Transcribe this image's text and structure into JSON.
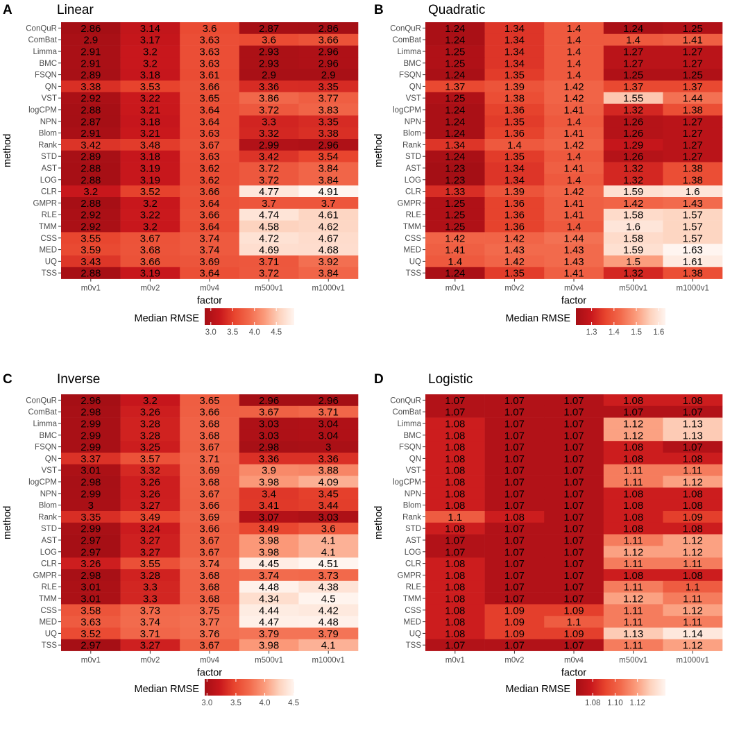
{
  "chart_data": [
    {
      "type": "heatmap",
      "panel_label": "A",
      "title": "Linear",
      "xlabel": "factor",
      "ylabel": "method",
      "categories": [
        "m0v1",
        "m0v2",
        "m0v4",
        "m500v1",
        "m1000v1"
      ],
      "methods": [
        "ConQuR",
        "ComBat",
        "Limma",
        "BMC",
        "FSQN",
        "QN",
        "VST",
        "logCPM",
        "NPN",
        "Blom",
        "Rank",
        "STD",
        "AST",
        "LOG",
        "CLR",
        "GMPR",
        "RLE",
        "TMM",
        "CSS",
        "MED",
        "UQ",
        "TSS"
      ],
      "values": [
        [
          2.86,
          3.14,
          3.6,
          2.87,
          2.86
        ],
        [
          2.9,
          3.17,
          3.63,
          3.6,
          3.66
        ],
        [
          2.91,
          3.2,
          3.63,
          2.93,
          2.96
        ],
        [
          2.91,
          3.2,
          3.63,
          2.93,
          2.96
        ],
        [
          2.89,
          3.18,
          3.61,
          2.9,
          2.9
        ],
        [
          3.38,
          3.53,
          3.66,
          3.36,
          3.35
        ],
        [
          2.92,
          3.22,
          3.65,
          3.86,
          3.77
        ],
        [
          2.88,
          3.21,
          3.64,
          3.72,
          3.83
        ],
        [
          2.87,
          3.18,
          3.64,
          3.3,
          3.35
        ],
        [
          2.91,
          3.21,
          3.63,
          3.32,
          3.38
        ],
        [
          3.42,
          3.48,
          3.67,
          2.99,
          2.96
        ],
        [
          2.89,
          3.18,
          3.63,
          3.42,
          3.54
        ],
        [
          2.88,
          3.19,
          3.62,
          3.72,
          3.84
        ],
        [
          2.88,
          3.19,
          3.62,
          3.72,
          3.84
        ],
        [
          3.2,
          3.52,
          3.66,
          4.77,
          4.91
        ],
        [
          2.88,
          3.2,
          3.64,
          3.7,
          3.7
        ],
        [
          2.92,
          3.22,
          3.66,
          4.74,
          4.61
        ],
        [
          2.92,
          3.2,
          3.64,
          4.58,
          4.62
        ],
        [
          3.55,
          3.67,
          3.74,
          4.72,
          4.67
        ],
        [
          3.59,
          3.68,
          3.74,
          4.69,
          4.68
        ],
        [
          3.43,
          3.66,
          3.69,
          3.71,
          3.92
        ],
        [
          2.88,
          3.19,
          3.64,
          3.72,
          3.84
        ]
      ],
      "legend_title": "Median RMSE",
      "legend_ticks": [
        "3.0",
        "3.5",
        "4.0",
        "4.5"
      ],
      "legend_tick_values": [
        3.0,
        3.5,
        4.0,
        4.5
      ],
      "color_range": [
        2.86,
        4.91
      ]
    },
    {
      "type": "heatmap",
      "panel_label": "B",
      "title": "Quadratic",
      "xlabel": "factor",
      "ylabel": "method",
      "categories": [
        "m0v1",
        "m0v2",
        "m0v4",
        "m500v1",
        "m1000v1"
      ],
      "methods": [
        "ConQuR",
        "ComBat",
        "Limma",
        "BMC",
        "FSQN",
        "QN",
        "VST",
        "logCPM",
        "NPN",
        "Blom",
        "Rank",
        "STD",
        "AST",
        "LOG",
        "CLR",
        "GMPR",
        "RLE",
        "TMM",
        "CSS",
        "MED",
        "UQ",
        "TSS"
      ],
      "values": [
        [
          1.24,
          1.34,
          1.4,
          1.24,
          1.25
        ],
        [
          1.24,
          1.34,
          1.4,
          1.4,
          1.41
        ],
        [
          1.25,
          1.34,
          1.4,
          1.27,
          1.27
        ],
        [
          1.25,
          1.34,
          1.4,
          1.27,
          1.27
        ],
        [
          1.24,
          1.35,
          1.4,
          1.25,
          1.25
        ],
        [
          1.37,
          1.39,
          1.42,
          1.37,
          1.37
        ],
        [
          1.25,
          1.38,
          1.42,
          1.55,
          1.44
        ],
        [
          1.24,
          1.36,
          1.41,
          1.32,
          1.38
        ],
        [
          1.24,
          1.35,
          1.4,
          1.26,
          1.27
        ],
        [
          1.24,
          1.36,
          1.41,
          1.26,
          1.27
        ],
        [
          1.34,
          1.4,
          1.42,
          1.29,
          1.27
        ],
        [
          1.24,
          1.35,
          1.4,
          1.26,
          1.27
        ],
        [
          1.23,
          1.34,
          1.41,
          1.32,
          1.38
        ],
        [
          1.23,
          1.34,
          1.4,
          1.32,
          1.38
        ],
        [
          1.33,
          1.39,
          1.42,
          1.59,
          1.6
        ],
        [
          1.25,
          1.36,
          1.41,
          1.42,
          1.43
        ],
        [
          1.25,
          1.36,
          1.41,
          1.58,
          1.57
        ],
        [
          1.25,
          1.36,
          1.4,
          1.6,
          1.57
        ],
        [
          1.42,
          1.42,
          1.44,
          1.58,
          1.57
        ],
        [
          1.41,
          1.43,
          1.43,
          1.59,
          1.63
        ],
        [
          1.4,
          1.42,
          1.43,
          1.5,
          1.61
        ],
        [
          1.24,
          1.35,
          1.41,
          1.32,
          1.38
        ]
      ],
      "legend_title": "Median RMSE",
      "legend_ticks": [
        "1.3",
        "1.4",
        "1.5",
        "1.6"
      ],
      "legend_tick_values": [
        1.3,
        1.4,
        1.5,
        1.6
      ],
      "color_range": [
        1.23,
        1.63
      ]
    },
    {
      "type": "heatmap",
      "panel_label": "C",
      "title": "Inverse",
      "xlabel": "factor",
      "ylabel": "method",
      "categories": [
        "m0v1",
        "m0v2",
        "m0v4",
        "m500v1",
        "m1000v1"
      ],
      "methods": [
        "ConQuR",
        "ComBat",
        "Limma",
        "BMC",
        "FSQN",
        "QN",
        "VST",
        "logCPM",
        "NPN",
        "Blom",
        "Rank",
        "STD",
        "AST",
        "LOG",
        "CLR",
        "GMPR",
        "RLE",
        "TMM",
        "CSS",
        "MED",
        "UQ",
        "TSS"
      ],
      "values": [
        [
          2.96,
          3.2,
          3.65,
          2.96,
          2.96
        ],
        [
          2.98,
          3.26,
          3.66,
          3.67,
          3.71
        ],
        [
          2.99,
          3.28,
          3.68,
          3.03,
          3.04
        ],
        [
          2.99,
          3.28,
          3.68,
          3.03,
          3.04
        ],
        [
          2.99,
          3.25,
          3.67,
          2.98,
          3
        ],
        [
          3.37,
          3.57,
          3.71,
          3.36,
          3.36
        ],
        [
          3.01,
          3.32,
          3.69,
          3.9,
          3.88
        ],
        [
          2.98,
          3.26,
          3.68,
          3.98,
          4.09
        ],
        [
          2.99,
          3.26,
          3.67,
          3.4,
          3.45
        ],
        [
          3,
          3.27,
          3.66,
          3.41,
          3.44
        ],
        [
          3.35,
          3.49,
          3.69,
          3.07,
          3.03
        ],
        [
          2.99,
          3.24,
          3.66,
          3.49,
          3.6
        ],
        [
          2.97,
          3.27,
          3.67,
          3.98,
          4.1
        ],
        [
          2.97,
          3.27,
          3.67,
          3.98,
          4.1
        ],
        [
          3.26,
          3.55,
          3.74,
          4.45,
          4.51
        ],
        [
          2.98,
          3.28,
          3.68,
          3.74,
          3.73
        ],
        [
          3.01,
          3.3,
          3.68,
          4.48,
          4.38
        ],
        [
          3.01,
          3.3,
          3.68,
          4.34,
          4.5
        ],
        [
          3.58,
          3.73,
          3.75,
          4.44,
          4.42
        ],
        [
          3.63,
          3.74,
          3.77,
          4.47,
          4.48
        ],
        [
          3.52,
          3.71,
          3.76,
          3.79,
          3.79
        ],
        [
          2.97,
          3.27,
          3.67,
          3.98,
          4.1
        ]
      ],
      "legend_title": "Median RMSE",
      "legend_ticks": [
        "3.0",
        "3.5",
        "4.0",
        "4.5"
      ],
      "legend_tick_values": [
        3.0,
        3.5,
        4.0,
        4.5
      ],
      "color_range": [
        2.96,
        4.51
      ]
    },
    {
      "type": "heatmap",
      "panel_label": "D",
      "title": "Logistic",
      "xlabel": "factor",
      "ylabel": "method",
      "categories": [
        "m0v1",
        "m0v2",
        "m0v4",
        "m500v1",
        "m1000v1"
      ],
      "methods": [
        "ConQuR",
        "ComBat",
        "Limma",
        "BMC",
        "FSQN",
        "QN",
        "VST",
        "logCPM",
        "NPN",
        "Blom",
        "Rank",
        "STD",
        "AST",
        "LOG",
        "CLR",
        "GMPR",
        "RLE",
        "TMM",
        "CSS",
        "MED",
        "UQ",
        "TSS"
      ],
      "values": [
        [
          1.07,
          1.07,
          1.07,
          1.08,
          1.08
        ],
        [
          1.07,
          1.07,
          1.07,
          1.07,
          1.07
        ],
        [
          1.08,
          1.07,
          1.07,
          1.12,
          1.13
        ],
        [
          1.08,
          1.07,
          1.07,
          1.12,
          1.13
        ],
        [
          1.08,
          1.07,
          1.07,
          1.08,
          1.07
        ],
        [
          1.08,
          1.07,
          1.07,
          1.08,
          1.08
        ],
        [
          1.08,
          1.07,
          1.07,
          1.11,
          1.11
        ],
        [
          1.08,
          1.07,
          1.07,
          1.11,
          1.12
        ],
        [
          1.08,
          1.07,
          1.07,
          1.08,
          1.08
        ],
        [
          1.08,
          1.07,
          1.07,
          1.08,
          1.08
        ],
        [
          1.1,
          1.08,
          1.07,
          1.08,
          1.09
        ],
        [
          1.08,
          1.07,
          1.07,
          1.08,
          1.08
        ],
        [
          1.07,
          1.07,
          1.07,
          1.11,
          1.12
        ],
        [
          1.07,
          1.07,
          1.07,
          1.12,
          1.12
        ],
        [
          1.08,
          1.07,
          1.07,
          1.11,
          1.11
        ],
        [
          1.08,
          1.07,
          1.07,
          1.08,
          1.08
        ],
        [
          1.08,
          1.07,
          1.07,
          1.11,
          1.1
        ],
        [
          1.08,
          1.07,
          1.07,
          1.12,
          1.11
        ],
        [
          1.08,
          1.09,
          1.09,
          1.11,
          1.12
        ],
        [
          1.08,
          1.09,
          1.1,
          1.11,
          1.11
        ],
        [
          1.08,
          1.09,
          1.09,
          1.13,
          1.14
        ],
        [
          1.07,
          1.07,
          1.07,
          1.11,
          1.12
        ]
      ],
      "legend_title": "Median RMSE",
      "legend_ticks": [
        "1.08",
        "1.10",
        "1.12"
      ],
      "legend_tick_values": [
        1.08,
        1.1,
        1.12
      ],
      "color_range": [
        1.065,
        1.145
      ]
    }
  ],
  "colors": {
    "scale": [
      "#a50f15",
      "#c8171c",
      "#e8452e",
      "#f26a4c",
      "#fb9a7a",
      "#fdd2bd",
      "#fff5f0"
    ],
    "grid": "#ebebeb",
    "axis_text": "#4d4d4d",
    "text": "#000000"
  }
}
